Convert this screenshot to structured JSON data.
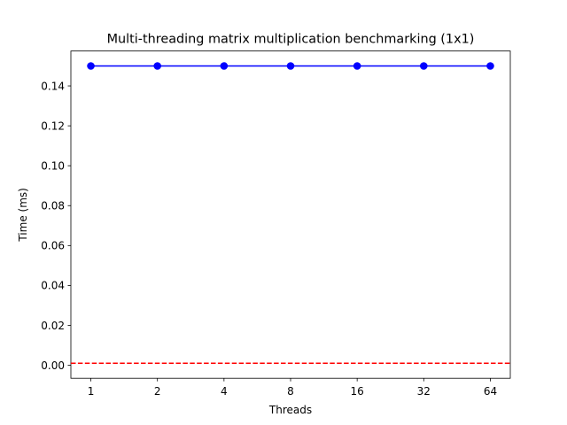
{
  "chart_data": {
    "type": "line",
    "title": "Multi-threading matrix multiplication benchmarking (1x1)",
    "xlabel": "Threads",
    "ylabel": "Time (ms)",
    "categories": [
      "1",
      "2",
      "4",
      "8",
      "16",
      "32",
      "64"
    ],
    "series": [
      {
        "values": [
          0.15,
          0.15,
          0.15,
          0.15,
          0.15,
          0.15,
          0.15
        ],
        "color": "#0000ff",
        "marker": "circle"
      }
    ],
    "reference_line": {
      "y": 0.001,
      "color": "#ff0000",
      "style": "dashed"
    },
    "ylim": [
      -0.0065,
      0.1575
    ],
    "yticks": [
      0.0,
      0.02,
      0.04,
      0.06,
      0.08,
      0.1,
      0.12,
      0.14
    ],
    "ytick_labels": [
      "0.00",
      "0.02",
      "0.04",
      "0.06",
      "0.08",
      "0.10",
      "0.12",
      "0.14"
    ],
    "grid": false,
    "legend": "none"
  }
}
